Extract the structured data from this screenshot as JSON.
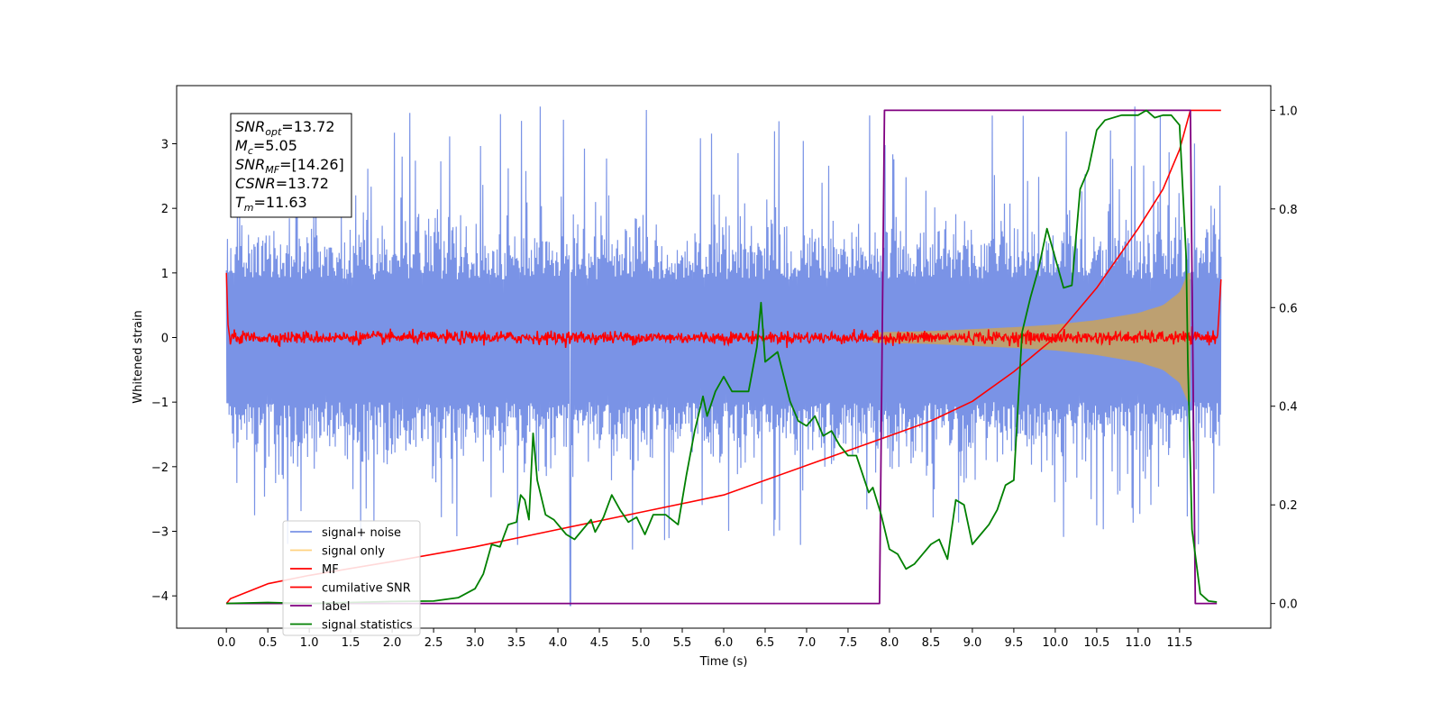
{
  "chart_data": {
    "type": "line",
    "xlabel": "Time (s)",
    "ylabel": "Whitened strain",
    "xlim": [
      -0.6,
      12.6
    ],
    "ylim_left": [
      -4.5,
      3.9
    ],
    "ylim_right": [
      -0.05,
      1.05
    ],
    "x_ticks": [
      0.0,
      0.5,
      1.0,
      1.5,
      2.0,
      2.5,
      3.0,
      3.5,
      4.0,
      4.5,
      5.0,
      5.5,
      6.0,
      6.5,
      7.0,
      7.5,
      8.0,
      8.5,
      9.0,
      9.5,
      10.0,
      10.5,
      11.0,
      11.5
    ],
    "x_tick_labels": [
      "0.0",
      "0.5",
      "1.0",
      "1.5",
      "2.0",
      "2.5",
      "3.0",
      "3.5",
      "4.0",
      "4.5",
      "5.0",
      "5.5",
      "6.0",
      "6.5",
      "7.0",
      "7.5",
      "8.0",
      "8.5",
      "9.0",
      "9.5",
      "10.0",
      "10.5",
      "11.0",
      "11.5"
    ],
    "y_left_ticks": [
      3,
      2,
      1,
      0,
      -1,
      -2,
      -3,
      -4
    ],
    "y_left_tick_labels": [
      "3",
      "2",
      "1",
      "0",
      "−1",
      "−2",
      "−3",
      "−4"
    ],
    "y_right_ticks": [
      1.0,
      0.8,
      0.6,
      0.4,
      0.2,
      0.0
    ],
    "y_right_tick_labels": [
      "1.0",
      "0.8",
      "0.6",
      "0.4",
      "0.2",
      "0.0"
    ],
    "annotation": {
      "lines": [
        {
          "sym": "SNR",
          "sub": "opt",
          "rest": "=13.72"
        },
        {
          "sym": "M",
          "sub": "c",
          "rest": "=5.05"
        },
        {
          "sym": "SNR",
          "sub": "MF",
          "rest": "=[14.26]"
        },
        {
          "sym": "CSNR",
          "sub": "",
          "rest": "=13.72"
        },
        {
          "sym": "T",
          "sub": "m",
          "rest": "=11.63"
        }
      ]
    },
    "legend": {
      "placement": "lower-left",
      "entries": [
        {
          "label": "signal+ noise",
          "color": "#7a93e6"
        },
        {
          "label": "signal only",
          "color": "#ffd27f"
        },
        {
          "label": "MF",
          "color": "#ff0000"
        },
        {
          "label": "cumilative SNR",
          "color": "#ff0000"
        },
        {
          "label": "label",
          "color": "#800080"
        },
        {
          "label": "signal statistics",
          "color": "#008000"
        }
      ]
    },
    "series": [
      {
        "name": "signal+ noise",
        "axis": "left",
        "color": "#7a93e6",
        "x_range": [
          0.0,
          12.0
        ],
        "envelope_upper": 1.7,
        "envelope_lower": -1.9,
        "spike_max": 3.6,
        "spike_min": -3.3,
        "min_spike": {
          "x": 4.15,
          "y": -4.15
        }
      },
      {
        "name": "signal only",
        "axis": "left",
        "color": "#ffd27f",
        "amplitude": [
          [
            7.8,
            0.08
          ],
          [
            8.5,
            0.1
          ],
          [
            9.0,
            0.13
          ],
          [
            9.5,
            0.16
          ],
          [
            10.0,
            0.2
          ],
          [
            10.5,
            0.27
          ],
          [
            11.0,
            0.38
          ],
          [
            11.3,
            0.5
          ],
          [
            11.5,
            0.7
          ],
          [
            11.6,
            1.0
          ],
          [
            11.63,
            1.0
          ]
        ]
      },
      {
        "name": "MF",
        "axis": "left",
        "color": "#ff0000",
        "baseline": 0.0,
        "noise": 0.08,
        "start": 1.0,
        "end": 0.9
      },
      {
        "name": "cumilative SNR",
        "axis": "right",
        "color": "#ff0000",
        "points": [
          [
            0.0,
            0.0
          ],
          [
            0.05,
            0.01
          ],
          [
            0.5,
            0.04
          ],
          [
            1.0,
            0.057
          ],
          [
            2.0,
            0.085
          ],
          [
            3.0,
            0.115
          ],
          [
            4.0,
            0.15
          ],
          [
            5.0,
            0.185
          ],
          [
            6.0,
            0.22
          ],
          [
            7.0,
            0.28
          ],
          [
            7.5,
            0.31
          ],
          [
            8.0,
            0.34
          ],
          [
            8.5,
            0.37
          ],
          [
            9.0,
            0.41
          ],
          [
            9.5,
            0.47
          ],
          [
            10.0,
            0.54
          ],
          [
            10.5,
            0.64
          ],
          [
            11.0,
            0.76
          ],
          [
            11.3,
            0.84
          ],
          [
            11.5,
            0.92
          ],
          [
            11.63,
            1.0
          ],
          [
            12.0,
            1.0
          ]
        ]
      },
      {
        "name": "label",
        "axis": "right",
        "color": "#800080",
        "points": [
          [
            0.0,
            0.0
          ],
          [
            7.88,
            0.0
          ],
          [
            7.94,
            1.0
          ],
          [
            11.63,
            1.0
          ],
          [
            11.69,
            0.0
          ],
          [
            11.95,
            0.0
          ]
        ]
      },
      {
        "name": "signal statistics",
        "axis": "right",
        "color": "#008000",
        "points": [
          [
            0.0,
            0.0
          ],
          [
            0.5,
            0.002
          ],
          [
            1.0,
            0.0
          ],
          [
            1.5,
            0.002
          ],
          [
            2.0,
            0.004
          ],
          [
            2.5,
            0.005
          ],
          [
            2.8,
            0.012
          ],
          [
            3.0,
            0.03
          ],
          [
            3.1,
            0.06
          ],
          [
            3.2,
            0.12
          ],
          [
            3.3,
            0.115
          ],
          [
            3.4,
            0.16
          ],
          [
            3.5,
            0.165
          ],
          [
            3.55,
            0.22
          ],
          [
            3.6,
            0.21
          ],
          [
            3.65,
            0.17
          ],
          [
            3.7,
            0.345
          ],
          [
            3.75,
            0.25
          ],
          [
            3.85,
            0.18
          ],
          [
            3.95,
            0.17
          ],
          [
            4.1,
            0.14
          ],
          [
            4.2,
            0.13
          ],
          [
            4.4,
            0.17
          ],
          [
            4.45,
            0.145
          ],
          [
            4.55,
            0.175
          ],
          [
            4.65,
            0.22
          ],
          [
            4.75,
            0.19
          ],
          [
            4.85,
            0.165
          ],
          [
            4.95,
            0.175
          ],
          [
            5.05,
            0.14
          ],
          [
            5.15,
            0.18
          ],
          [
            5.3,
            0.18
          ],
          [
            5.45,
            0.16
          ],
          [
            5.55,
            0.26
          ],
          [
            5.65,
            0.35
          ],
          [
            5.75,
            0.42
          ],
          [
            5.8,
            0.38
          ],
          [
            5.9,
            0.43
          ],
          [
            6.0,
            0.46
          ],
          [
            6.1,
            0.43
          ],
          [
            6.3,
            0.43
          ],
          [
            6.4,
            0.52
          ],
          [
            6.45,
            0.61
          ],
          [
            6.5,
            0.49
          ],
          [
            6.65,
            0.51
          ],
          [
            6.8,
            0.41
          ],
          [
            6.9,
            0.37
          ],
          [
            7.0,
            0.36
          ],
          [
            7.1,
            0.38
          ],
          [
            7.2,
            0.34
          ],
          [
            7.3,
            0.35
          ],
          [
            7.4,
            0.32
          ],
          [
            7.5,
            0.3
          ],
          [
            7.6,
            0.3
          ],
          [
            7.7,
            0.25
          ],
          [
            7.75,
            0.225
          ],
          [
            7.8,
            0.235
          ],
          [
            7.9,
            0.18
          ],
          [
            8.0,
            0.11
          ],
          [
            8.1,
            0.1
          ],
          [
            8.2,
            0.07
          ],
          [
            8.3,
            0.08
          ],
          [
            8.4,
            0.1
          ],
          [
            8.5,
            0.12
          ],
          [
            8.6,
            0.13
          ],
          [
            8.7,
            0.09
          ],
          [
            8.8,
            0.21
          ],
          [
            8.9,
            0.2
          ],
          [
            9.0,
            0.12
          ],
          [
            9.1,
            0.14
          ],
          [
            9.2,
            0.16
          ],
          [
            9.3,
            0.19
          ],
          [
            9.4,
            0.24
          ],
          [
            9.5,
            0.25
          ],
          [
            9.6,
            0.55
          ],
          [
            9.7,
            0.62
          ],
          [
            9.8,
            0.68
          ],
          [
            9.9,
            0.76
          ],
          [
            10.0,
            0.7
          ],
          [
            10.1,
            0.64
          ],
          [
            10.2,
            0.645
          ],
          [
            10.3,
            0.84
          ],
          [
            10.4,
            0.88
          ],
          [
            10.5,
            0.96
          ],
          [
            10.6,
            0.98
          ],
          [
            10.8,
            0.99
          ],
          [
            11.0,
            0.99
          ],
          [
            11.1,
            1.0
          ],
          [
            11.2,
            0.985
          ],
          [
            11.3,
            0.99
          ],
          [
            11.4,
            0.99
          ],
          [
            11.5,
            0.97
          ],
          [
            11.58,
            0.7
          ],
          [
            11.6,
            0.49
          ],
          [
            11.65,
            0.15
          ],
          [
            11.75,
            0.02
          ],
          [
            11.85,
            0.005
          ],
          [
            11.95,
            0.003
          ]
        ]
      }
    ]
  }
}
